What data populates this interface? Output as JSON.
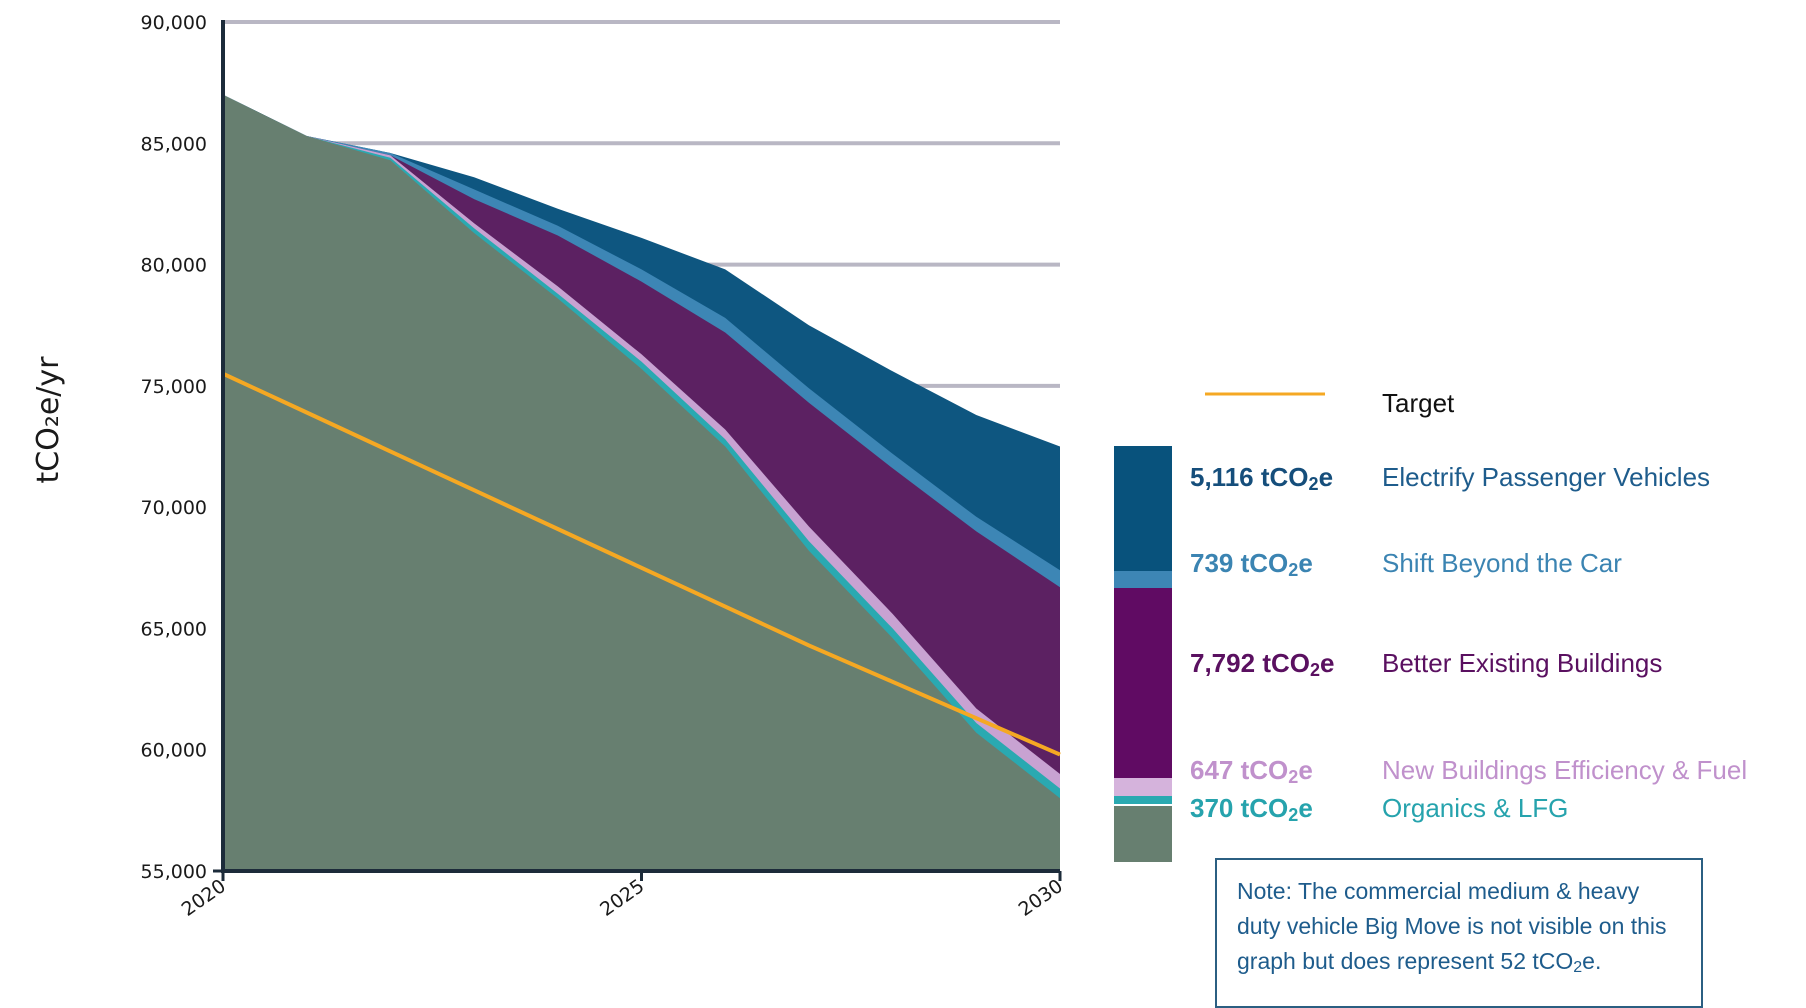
{
  "chart_data": {
    "type": "area",
    "title": "",
    "xlabel": "",
    "ylabel": "tCO₂e/yr",
    "xlim": [
      2020,
      2030
    ],
    "ylim": [
      55000,
      90000
    ],
    "x_ticks": [
      "2020",
      "2025",
      "2030"
    ],
    "y_ticks": [
      "55,000",
      "60,000",
      "65,000",
      "70,000",
      "75,000",
      "80,000",
      "85,000",
      "90,000"
    ],
    "grid": "horizontal",
    "x": [
      2020,
      2021,
      2022,
      2023,
      2024,
      2025,
      2026,
      2027,
      2028,
      2029,
      2030
    ],
    "stack_boundaries": [
      {
        "name": "Base",
        "color": "#677f70",
        "values": [
          87000,
          85300,
          84300,
          81300,
          78600,
          75700,
          72500,
          68200,
          64600,
          60700,
          58000
        ]
      },
      {
        "name": "Organics & LFG",
        "color": "#2aa9b1",
        "values": [
          87000,
          85300,
          84400,
          81500,
          78800,
          76000,
          72800,
          68600,
          65000,
          61100,
          58400
        ]
      },
      {
        "name": "New Buildings Efficiency & Fuel",
        "color": "#c8a2d2",
        "values": [
          87000,
          85300,
          84500,
          81700,
          79100,
          76300,
          73200,
          69200,
          65600,
          61700,
          59000
        ]
      },
      {
        "name": "Better Existing Buildings",
        "color": "#5c2162",
        "values": [
          87000,
          85300,
          84500,
          82700,
          81200,
          79300,
          77200,
          74300,
          71600,
          69000,
          66700
        ]
      },
      {
        "name": "Shift Beyond the Car",
        "color": "#3d86b5",
        "values": [
          87000,
          85300,
          84600,
          83100,
          81600,
          79800,
          77800,
          74900,
          72200,
          69600,
          67400
        ]
      },
      {
        "name": "Electrify Passenger Vehicles",
        "color": "#0e5680",
        "values": [
          87000,
          85300,
          84600,
          83600,
          82300,
          81100,
          79800,
          77500,
          75600,
          73800,
          72500
        ]
      }
    ],
    "target": {
      "name": "Target",
      "color": "#f5a823",
      "values": [
        75500,
        73900,
        72300,
        70700,
        69100,
        67500,
        65900,
        64300,
        62800,
        61300,
        59800
      ]
    },
    "legend": {
      "placement": "right",
      "target_label": "Target",
      "items": [
        {
          "amount": "5,116",
          "unit": "tCO",
          "unit_sub": "2",
          "unit_end": "e",
          "label": "Electrify Passenger Vehicles",
          "amount_color": "#154e7b",
          "label_color": "#1e5c8c",
          "swatch": "#08527c"
        },
        {
          "amount": "739",
          "unit": "tCO",
          "unit_sub": "2",
          "unit_end": "e",
          "label": "Shift Beyond the Car",
          "amount_color": "#3b84b2",
          "label_color": "#3b84b2",
          "swatch": "#3d86b5"
        },
        {
          "amount": "7,792",
          "unit": "tCO",
          "unit_sub": "2",
          "unit_end": "e",
          "label": "Better Existing Buildings",
          "amount_color": "#5a1060",
          "label_color": "#5a1060",
          "swatch": "#600b63"
        },
        {
          "amount": "647",
          "unit": "tCO",
          "unit_sub": "2",
          "unit_end": "e",
          "label": "New Buildings Efficiency & Fuel",
          "amount_color": "#c091cc",
          "label_color": "#c091cc",
          "swatch": "#d5b3dc"
        },
        {
          "amount": "370",
          "unit": "tCO",
          "unit_sub": "2",
          "unit_end": "e",
          "label": "Organics & LFG",
          "amount_color": "#26a3ad",
          "label_color": "#26a3ad",
          "swatch": "#2aa9b1"
        }
      ],
      "base_swatch": "#677f70"
    },
    "note": {
      "line1": "Note: The commercial medium & heavy",
      "line2": "duty vehicle Big Move is not visible on this",
      "line3a": "graph but does represent 52 tCO",
      "line3_sub": "2",
      "line3b": "e."
    }
  }
}
